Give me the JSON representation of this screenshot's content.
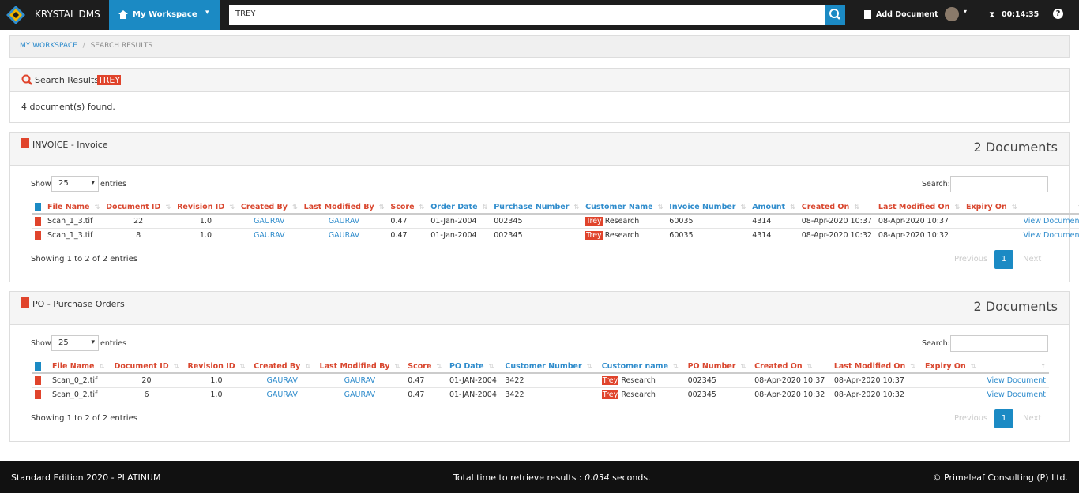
{
  "header": {
    "brand": "KRYSTAL DMS",
    "workspace": "My Workspace",
    "search": "TREY",
    "add_document": "Add Document",
    "timer": "00:14:35",
    "help": "?"
  },
  "breadcrumb": [
    "MY WORKSPACE",
    "SEARCH RESULTS"
  ],
  "search_results": {
    "label": "Search Results :",
    "term": "TREY",
    "found": "4 document(s) found."
  },
  "panels": [
    {
      "title": "INVOICE - Invoice",
      "count": "2 Documents",
      "show": "Show",
      "page_size": "25",
      "entries": "entries",
      "search": "Search:",
      "columns": [
        "File Name",
        "Document ID",
        "Revision ID",
        "Created By",
        "Last Modified By",
        "Score",
        "Order Date",
        "Purchase Number",
        "Customer Name",
        "Invoice Number",
        "Amount",
        "Created On",
        "Last Modified On",
        "Expiry On"
      ],
      "rows": [
        [
          "Scan_1_3.tif",
          "22",
          "1.0",
          "GAURAV",
          "GAURAV",
          "0.47",
          "01-Jan-2004",
          "002345",
          [
            "Trey",
            "Research"
          ],
          "60035",
          "4314",
          "08-Apr-2020 10:37",
          "08-Apr-2020 10:37",
          null,
          "View Document"
        ],
        [
          "Scan_1_3.tif",
          "8",
          "1.0",
          "GAURAV",
          "GAURAV",
          "0.47",
          "01-Jan-2004",
          "002345",
          [
            "Trey",
            "Research"
          ],
          "60035",
          "4314",
          "08-Apr-2020 10:32",
          "08-Apr-2020 10:32",
          null,
          "View Document"
        ]
      ],
      "info": "Showing 1 to 2 of 2 entries",
      "previous": "Previous",
      "page": "1",
      "next": "Next"
    },
    {
      "title": "PO - Purchase Orders",
      "count": "2 Documents",
      "show": "Show",
      "page_size": "25",
      "entries": "entries",
      "search": "Search:",
      "columns": [
        "File Name",
        "Document ID",
        "Revision ID",
        "Created By",
        "Last Modified By",
        "Score",
        "PO Date",
        "Customer Number",
        "Customer name",
        "PO Number",
        "Created On",
        "Last Modified On",
        "Expiry On"
      ],
      "rows": [
        [
          "Scan_0_2.tif",
          "20",
          "1.0",
          "GAURAV",
          "GAURAV",
          "0.47",
          "01-JAN-2004",
          "3422",
          [
            "Trey",
            "Research"
          ],
          "002345",
          "08-Apr-2020 10:37",
          "08-Apr-2020 10:37",
          null,
          "View Document"
        ],
        [
          "Scan_0_2.tif",
          "6",
          "1.0",
          "GAURAV",
          "GAURAV",
          "0.47",
          "01-JAN-2004",
          "3422",
          [
            "Trey",
            "Research"
          ],
          "002345",
          "08-Apr-2020 10:32",
          "08-Apr-2020 10:32",
          null,
          "View Document"
        ]
      ],
      "info": "Showing 1 to 2 of 2 entries",
      "previous": "Previous",
      "page": "1",
      "next": "Next"
    }
  ],
  "footer": {
    "edition": "Standard Edition 2020 - PLATINUM",
    "time_label": "Total time to retrieve results :",
    "time": "0.034",
    "time_unit": "seconds.",
    "copyright": "© Primeleaf Consulting (P) Ltd."
  }
}
